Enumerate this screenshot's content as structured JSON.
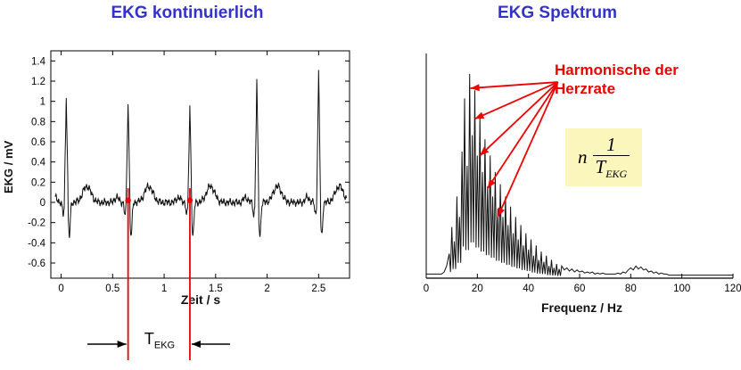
{
  "colors": {
    "title_blue": "#3333CC",
    "annotation_red": "#EE0000",
    "trace_black": "#111111",
    "formula_background": "#FAF6BC"
  },
  "annotations": {
    "harmonics_label": "Harmonische der Herzrate",
    "t_ekg": {
      "main": "T",
      "sub": "EKG"
    },
    "formula": {
      "factor": "n",
      "numerator": "1",
      "den_main": "T",
      "den_sub": "EKG"
    }
  },
  "chart_data": [
    {
      "type": "line",
      "title": "EKG kontinuierlich",
      "xlabel": "Zeit / s",
      "ylabel": "EKG / mV",
      "xlim": [
        -0.1,
        2.8
      ],
      "ylim": [
        -0.75,
        1.5
      ],
      "xticks": [
        0,
        0.5,
        1,
        1.5,
        2,
        2.5
      ],
      "yticks": [
        1.4,
        1.2,
        1,
        0.8,
        0.6,
        0.4,
        0.2,
        0,
        -0.2,
        -0.4,
        -0.6
      ],
      "grid": false,
      "beat_times": [
        0.05,
        0.65,
        1.25,
        1.9,
        2.5
      ],
      "beat_amplitudes": [
        1.05,
        1.0,
        0.95,
        1.2,
        1.3
      ],
      "period_s": 0.6,
      "marker_times": [
        0.65,
        1.25
      ]
    },
    {
      "type": "line",
      "title": "EKG  Spektrum",
      "xlabel": "Frequenz / Hz",
      "xlim": [
        0,
        120
      ],
      "ylim": [
        0,
        1.1
      ],
      "xticks": [
        0,
        20,
        40,
        60,
        80,
        100,
        120
      ],
      "grid": false,
      "freq_start_hz": 0,
      "freq_step_hz": 1,
      "magnitude": [
        0.02,
        0.02,
        0.02,
        0.02,
        0.02,
        0.02,
        0.02,
        0.03,
        0.06,
        0.12,
        0.25,
        0.18,
        0.4,
        0.3,
        0.62,
        0.88,
        0.55,
        1.0,
        0.7,
        0.92,
        0.6,
        0.8,
        0.52,
        0.68,
        0.45,
        0.6,
        0.4,
        0.52,
        0.34,
        0.46,
        0.3,
        0.4,
        0.26,
        0.35,
        0.22,
        0.3,
        0.19,
        0.26,
        0.16,
        0.22,
        0.14,
        0.19,
        0.11,
        0.16,
        0.09,
        0.13,
        0.08,
        0.11,
        0.06,
        0.09,
        0.05,
        0.07,
        0.045,
        0.06,
        0.04,
        0.05,
        0.035,
        0.045,
        0.03,
        0.04,
        0.03,
        0.035,
        0.025,
        0.03,
        0.025,
        0.03,
        0.02,
        0.025,
        0.02,
        0.025,
        0.02,
        0.02,
        0.02,
        0.02,
        0.02,
        0.025,
        0.02,
        0.03,
        0.025,
        0.04,
        0.05,
        0.04,
        0.06,
        0.045,
        0.055,
        0.04,
        0.045,
        0.03,
        0.035,
        0.025,
        0.03,
        0.02,
        0.025,
        0.02,
        0.02,
        0.015,
        0.015,
        0.015,
        0.015,
        0.015,
        0.015,
        0.015,
        0.015,
        0.015,
        0.015,
        0.015,
        0.015,
        0.015,
        0.015,
        0.015,
        0.015,
        0.015,
        0.015,
        0.015,
        0.015,
        0.015,
        0.015,
        0.015,
        0.015,
        0.015,
        0.015
      ],
      "harmonic_arrows": {
        "origin": [
          51.5,
          0.96
        ],
        "targets": [
          [
            17.3,
            0.93
          ],
          [
            19,
            0.78
          ],
          [
            21,
            0.6
          ],
          [
            24,
            0.44
          ],
          [
            28,
            0.3
          ]
        ]
      }
    }
  ]
}
